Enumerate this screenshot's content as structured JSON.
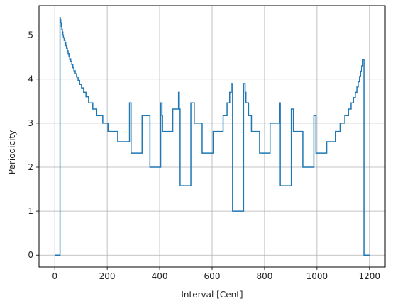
{
  "chart_data": {
    "type": "line",
    "title": "",
    "xlabel": "Interval [Cent]",
    "ylabel": "Periodicity",
    "xlim": [
      -60,
      1260
    ],
    "ylim": [
      -0.27,
      5.67
    ],
    "xticks": [
      0,
      200,
      400,
      600,
      800,
      1000,
      1200
    ],
    "yticks": [
      0,
      1,
      2,
      3,
      4,
      5
    ],
    "grid": true,
    "series": [
      {
        "color": "#1f77b4",
        "points": [
          [
            0,
            0
          ],
          [
            20,
            0
          ],
          [
            20,
            5.4
          ],
          [
            21,
            5.4
          ],
          [
            21,
            5.35
          ],
          [
            23,
            5.35
          ],
          [
            23,
            5.28
          ],
          [
            25,
            5.28
          ],
          [
            25,
            5.2
          ],
          [
            27,
            5.2
          ],
          [
            27,
            5.13
          ],
          [
            29,
            5.13
          ],
          [
            29,
            5.07
          ],
          [
            31,
            5.07
          ],
          [
            31,
            5.0
          ],
          [
            33,
            5.0
          ],
          [
            33,
            4.94
          ],
          [
            36,
            4.94
          ],
          [
            36,
            4.88
          ],
          [
            39,
            4.88
          ],
          [
            39,
            4.82
          ],
          [
            42,
            4.82
          ],
          [
            42,
            4.76
          ],
          [
            45,
            4.76
          ],
          [
            45,
            4.7
          ],
          [
            48,
            4.7
          ],
          [
            48,
            4.64
          ],
          [
            51,
            4.64
          ],
          [
            51,
            4.58
          ],
          [
            54,
            4.58
          ],
          [
            54,
            4.52
          ],
          [
            57,
            4.52
          ],
          [
            57,
            4.46
          ],
          [
            61,
            4.46
          ],
          [
            61,
            4.4
          ],
          [
            65,
            4.4
          ],
          [
            65,
            4.33
          ],
          [
            69,
            4.33
          ],
          [
            69,
            4.26
          ],
          [
            73,
            4.26
          ],
          [
            73,
            4.19
          ],
          [
            78,
            4.19
          ],
          [
            78,
            4.12
          ],
          [
            83,
            4.12
          ],
          [
            83,
            4.05
          ],
          [
            89,
            4.05
          ],
          [
            89,
            3.97
          ],
          [
            95,
            3.97
          ],
          [
            95,
            3.88
          ],
          [
            102,
            3.88
          ],
          [
            102,
            3.8
          ],
          [
            110,
            3.8
          ],
          [
            110,
            3.7
          ],
          [
            119,
            3.7
          ],
          [
            119,
            3.6
          ],
          [
            129,
            3.6
          ],
          [
            129,
            3.46
          ],
          [
            145,
            3.46
          ],
          [
            145,
            3.32
          ],
          [
            160,
            3.32
          ],
          [
            160,
            3.17
          ],
          [
            183,
            3.17
          ],
          [
            183,
            3.0
          ],
          [
            203,
            3.0
          ],
          [
            203,
            2.81
          ],
          [
            240,
            2.81
          ],
          [
            240,
            2.58
          ],
          [
            285,
            2.58
          ],
          [
            285,
            3.46
          ],
          [
            291,
            3.46
          ],
          [
            291,
            2.32
          ],
          [
            333,
            2.32
          ],
          [
            333,
            3.17
          ],
          [
            363,
            3.17
          ],
          [
            363,
            2.0
          ],
          [
            404,
            2.0
          ],
          [
            404,
            3.46
          ],
          [
            409,
            3.46
          ],
          [
            409,
            3.17
          ],
          [
            411,
            3.17
          ],
          [
            411,
            2.81
          ],
          [
            450,
            2.81
          ],
          [
            450,
            3.32
          ],
          [
            472,
            3.32
          ],
          [
            472,
            3.7
          ],
          [
            475,
            3.7
          ],
          [
            475,
            3.32
          ],
          [
            478,
            3.32
          ],
          [
            478,
            1.58
          ],
          [
            519,
            1.58
          ],
          [
            519,
            3.46
          ],
          [
            532,
            3.46
          ],
          [
            532,
            3.0
          ],
          [
            562,
            3.0
          ],
          [
            562,
            2.32
          ],
          [
            604,
            2.32
          ],
          [
            604,
            2.81
          ],
          [
            642,
            2.81
          ],
          [
            642,
            3.17
          ],
          [
            657,
            3.17
          ],
          [
            657,
            3.46
          ],
          [
            667,
            3.46
          ],
          [
            667,
            3.7
          ],
          [
            673,
            3.7
          ],
          [
            673,
            3.9
          ],
          [
            678,
            3.9
          ],
          [
            678,
            1.0
          ],
          [
            720,
            1.0
          ],
          [
            720,
            3.9
          ],
          [
            726,
            3.9
          ],
          [
            726,
            3.7
          ],
          [
            729,
            3.7
          ],
          [
            729,
            3.46
          ],
          [
            739,
            3.46
          ],
          [
            739,
            3.17
          ],
          [
            750,
            3.17
          ],
          [
            750,
            2.81
          ],
          [
            781,
            2.81
          ],
          [
            781,
            2.32
          ],
          [
            821,
            2.32
          ],
          [
            821,
            3.0
          ],
          [
            857,
            3.0
          ],
          [
            857,
            3.46
          ],
          [
            860,
            3.46
          ],
          [
            860,
            1.58
          ],
          [
            902,
            1.58
          ],
          [
            902,
            3.32
          ],
          [
            910,
            3.32
          ],
          [
            910,
            2.81
          ],
          [
            946,
            2.81
          ],
          [
            946,
            2.0
          ],
          [
            988,
            2.0
          ],
          [
            988,
            3.17
          ],
          [
            996,
            3.17
          ],
          [
            996,
            2.32
          ],
          [
            1037,
            2.32
          ],
          [
            1037,
            2.58
          ],
          [
            1070,
            2.58
          ],
          [
            1070,
            2.81
          ],
          [
            1088,
            2.81
          ],
          [
            1088,
            3.0
          ],
          [
            1106,
            3.0
          ],
          [
            1106,
            3.17
          ],
          [
            1120,
            3.17
          ],
          [
            1120,
            3.32
          ],
          [
            1130,
            3.32
          ],
          [
            1130,
            3.46
          ],
          [
            1139,
            3.46
          ],
          [
            1139,
            3.58
          ],
          [
            1146,
            3.58
          ],
          [
            1146,
            3.7
          ],
          [
            1152,
            3.7
          ],
          [
            1152,
            3.82
          ],
          [
            1157,
            3.82
          ],
          [
            1157,
            3.94
          ],
          [
            1162,
            3.94
          ],
          [
            1162,
            4.06
          ],
          [
            1166,
            4.06
          ],
          [
            1166,
            4.18
          ],
          [
            1170,
            4.18
          ],
          [
            1170,
            4.3
          ],
          [
            1174,
            4.3
          ],
          [
            1174,
            4.45
          ],
          [
            1179,
            4.45
          ],
          [
            1179,
            0
          ],
          [
            1200,
            0
          ]
        ]
      }
    ]
  }
}
